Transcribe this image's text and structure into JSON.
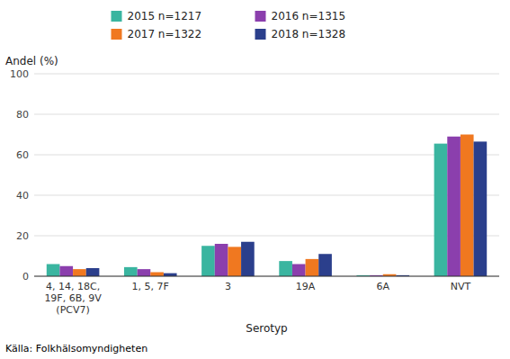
{
  "chart_data": {
    "type": "bar",
    "categories": [
      "4, 14, 18C,\n19F, 6B, 9V\n(PCV7)",
      "1, 5, 7F",
      "3",
      "19A",
      "6A",
      "NVT"
    ],
    "series": [
      {
        "name": "2015 n=1217",
        "color": "#3ab5a0",
        "values": [
          6.0,
          4.5,
          15.0,
          7.5,
          0.5,
          65.5
        ]
      },
      {
        "name": "2016 n=1315",
        "color": "#8b3fad",
        "values": [
          5.0,
          3.5,
          16.0,
          6.0,
          0.5,
          69.0
        ]
      },
      {
        "name": "2017 n=1322",
        "color": "#f07820",
        "values": [
          3.5,
          2.0,
          14.5,
          8.5,
          1.0,
          70.0
        ]
      },
      {
        "name": "2018 n=1328",
        "color": "#2b3f8c",
        "values": [
          4.0,
          1.5,
          17.0,
          11.0,
          0.5,
          66.5
        ]
      }
    ],
    "ylabel": "Andel (%)",
    "xlabel": "Serotyp",
    "source": "Källa: Folkhälsomyndigheten",
    "ylim": [
      0,
      100
    ],
    "yticks": [
      0,
      20,
      40,
      60,
      80,
      100
    ],
    "grid": true,
    "legend": "top"
  }
}
